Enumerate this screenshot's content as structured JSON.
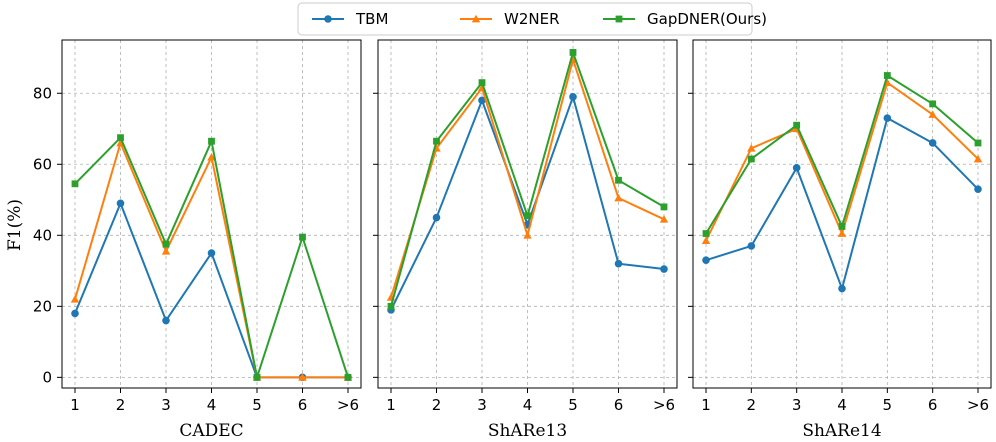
{
  "chart_data": {
    "type": "line",
    "ylabel": "F1(%)",
    "ylim": [
      -3,
      95
    ],
    "yticks": [
      0,
      20,
      40,
      60,
      80
    ],
    "grid": true,
    "legend": {
      "placement": "top-center",
      "entries": [
        {
          "name": "TBM",
          "color": "#1f77b4",
          "marker": "circle"
        },
        {
          "name": "W2NER",
          "color": "#ff7f0e",
          "marker": "triangle"
        },
        {
          "name": "GapDNER(Ours)",
          "color": "#2ca02c",
          "marker": "square"
        }
      ]
    },
    "categories": [
      "1",
      "2",
      "3",
      "4",
      "5",
      "6",
      ">6"
    ],
    "panels": [
      {
        "xlabel": "CADEC",
        "series": [
          {
            "name": "TBM",
            "values": [
              18,
              49,
              16,
              35,
              0,
              0,
              0
            ]
          },
          {
            "name": "W2NER",
            "values": [
              22,
              66,
              35.5,
              62,
              0,
              0,
              0
            ]
          },
          {
            "name": "GapDNER(Ours)",
            "values": [
              54.5,
              67.5,
              37.5,
              66.5,
              0,
              39.5,
              0
            ]
          }
        ]
      },
      {
        "xlabel": "ShARe13",
        "series": [
          {
            "name": "TBM",
            "values": [
              19,
              45,
              78,
              43,
              79,
              32,
              30.5
            ]
          },
          {
            "name": "W2NER",
            "values": [
              22.5,
              64.5,
              81.5,
              40,
              89.5,
              50.5,
              44.5
            ]
          },
          {
            "name": "GapDNER(Ours)",
            "values": [
              20,
              66.5,
              83,
              45.5,
              91.5,
              55.5,
              48
            ]
          }
        ]
      },
      {
        "xlabel": "ShARe14",
        "series": [
          {
            "name": "TBM",
            "values": [
              33,
              37,
              59,
              25,
              73,
              66,
              53
            ]
          },
          {
            "name": "W2NER",
            "values": [
              38.5,
              64.5,
              70,
              40.5,
              83,
              74,
              61.5
            ]
          },
          {
            "name": "GapDNER(Ours)",
            "values": [
              40.5,
              61.5,
              71,
              42.5,
              85,
              77,
              66
            ]
          }
        ]
      }
    ]
  }
}
